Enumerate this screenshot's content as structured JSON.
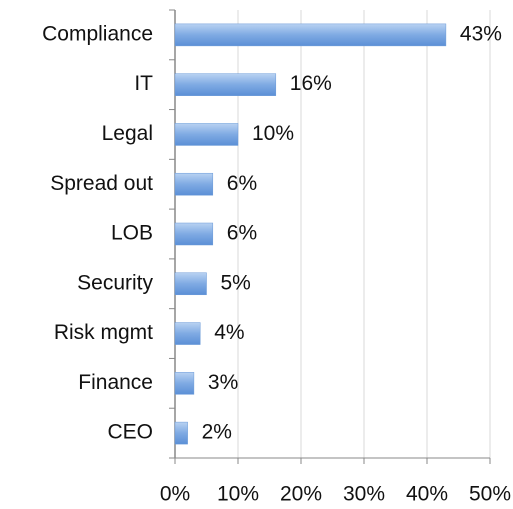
{
  "chart_data": {
    "type": "bar",
    "orientation": "horizontal",
    "categories": [
      "Compliance",
      "IT",
      "Legal",
      "Spread out",
      "LOB",
      "Security",
      "Risk mgmt",
      "Finance",
      "CEO"
    ],
    "values": [
      43,
      16,
      10,
      6,
      6,
      5,
      4,
      3,
      2
    ],
    "value_labels": [
      "43%",
      "16%",
      "10%",
      "6%",
      "6%",
      "5%",
      "4%",
      "3%",
      "2%"
    ],
    "color": "#6a9ad8",
    "xlim": [
      0,
      50
    ],
    "xticks": [
      {
        "value": 0,
        "label": "0%"
      },
      {
        "value": 10,
        "label": "10%"
      },
      {
        "value": 20,
        "label": "20%"
      },
      {
        "value": 30,
        "label": "30%"
      },
      {
        "value": 40,
        "label": "40%"
      },
      {
        "value": 50,
        "label": "50%"
      }
    ],
    "grid": true
  }
}
